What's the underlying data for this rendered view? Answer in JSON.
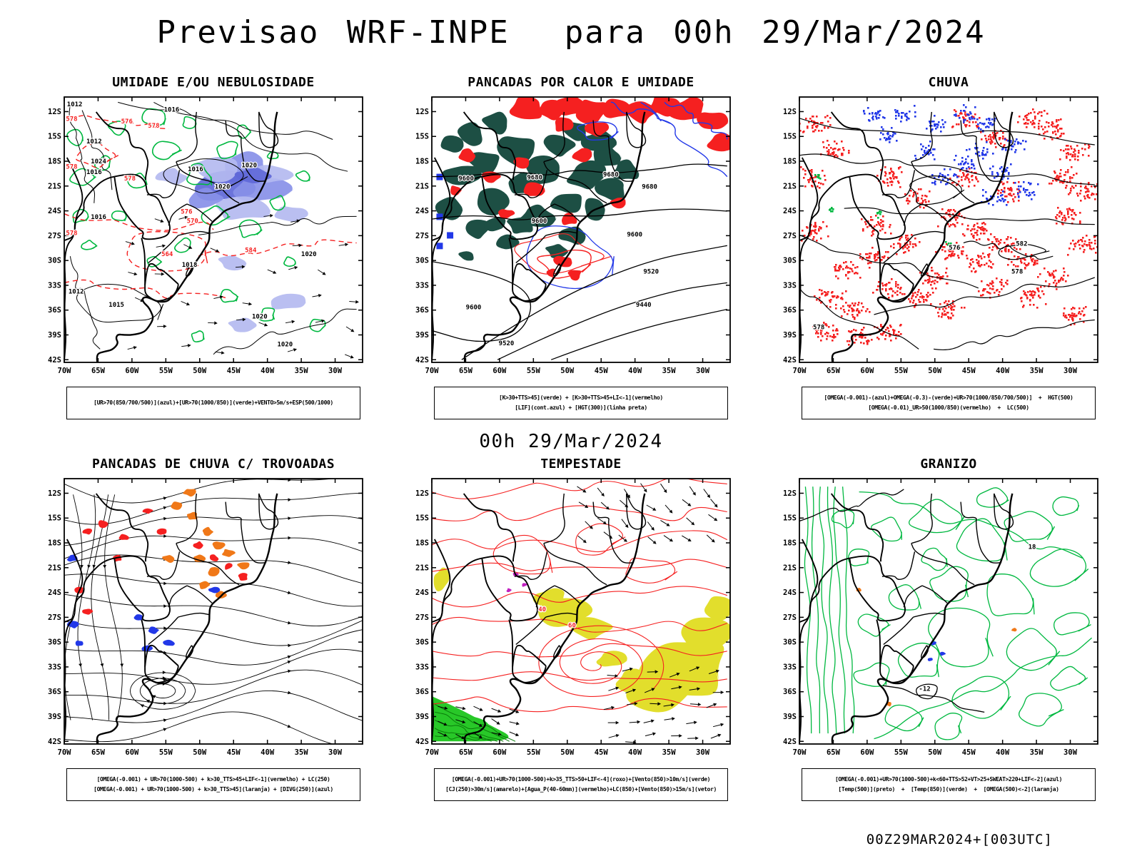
{
  "page": {
    "title": "Previsao WRF-INPE  para 00h 29/Mar/2024",
    "mid_label": "00h 29/Mar/2024",
    "footer": "00Z29MAR2024+[003UTC]"
  },
  "axes": {
    "lat": [
      "12S",
      "15S",
      "18S",
      "21S",
      "24S",
      "27S",
      "30S",
      "33S",
      "36S",
      "39S",
      "42S"
    ],
    "lon": [
      "70W",
      "65W",
      "60W",
      "55W",
      "50W",
      "45W",
      "40W",
      "35W",
      "30W"
    ]
  },
  "colors": {
    "green_contour": "#00b840",
    "red": "#f52020",
    "blue": "#2238e8",
    "teal": "#1d4f44",
    "orange": "#f07818",
    "yellow": "#e2de2c",
    "green_fill": "#28c828",
    "shade1": "#b4baf0",
    "shade2": "#8890e8",
    "shade3": "#5f68d8",
    "magenta": "#c020c0"
  },
  "panels": [
    {
      "id": "umidade",
      "title": "UMIDADE E/OU NEBULOSIDADE",
      "caption1": "[UR>70(850/700/500)](azul)+[UR>70(1000/850)](verde)+VENTO>5m/s+ESP(500/1000)",
      "caption2": "",
      "labels": [
        {
          "t": "1012",
          "fx": 0.035,
          "fy": 0.035,
          "c": "#000000"
        },
        {
          "t": "1016",
          "fx": 0.36,
          "fy": 0.055,
          "c": "#000000"
        },
        {
          "t": "1012",
          "fx": 0.1,
          "fy": 0.175,
          "c": "#000000"
        },
        {
          "t": "1024",
          "fx": 0.115,
          "fy": 0.25,
          "c": "#000000"
        },
        {
          "t": "1016",
          "fx": 0.1,
          "fy": 0.29,
          "c": "#000000"
        },
        {
          "t": "1016",
          "fx": 0.44,
          "fy": 0.28,
          "c": "#000000"
        },
        {
          "t": "1020",
          "fx": 0.62,
          "fy": 0.265,
          "c": "#000000"
        },
        {
          "t": "1020",
          "fx": 0.53,
          "fy": 0.345,
          "c": "#000000"
        },
        {
          "t": "1016",
          "fx": 0.115,
          "fy": 0.46,
          "c": "#000000"
        },
        {
          "t": "1020",
          "fx": 0.82,
          "fy": 0.6,
          "c": "#000000"
        },
        {
          "t": "1018",
          "fx": 0.42,
          "fy": 0.64,
          "c": "#000000"
        },
        {
          "t": "1015",
          "fx": 0.175,
          "fy": 0.79,
          "c": "#000000"
        },
        {
          "t": "1012",
          "fx": 0.04,
          "fy": 0.74,
          "c": "#000000"
        },
        {
          "t": "1020",
          "fx": 0.655,
          "fy": 0.835,
          "c": "#000000"
        },
        {
          "t": "1020",
          "fx": 0.74,
          "fy": 0.94,
          "c": "#000000"
        },
        {
          "t": "578",
          "fx": 0.025,
          "fy": 0.09,
          "c": "#f52020"
        },
        {
          "t": "576",
          "fx": 0.21,
          "fy": 0.1,
          "c": "#f52020"
        },
        {
          "t": "578",
          "fx": 0.3,
          "fy": 0.115,
          "c": "#f52020"
        },
        {
          "t": "578",
          "fx": 0.025,
          "fy": 0.27,
          "c": "#f52020"
        },
        {
          "t": "578",
          "fx": 0.22,
          "fy": 0.315,
          "c": "#f52020"
        },
        {
          "t": "576",
          "fx": 0.41,
          "fy": 0.44,
          "c": "#f52020"
        },
        {
          "t": "570",
          "fx": 0.43,
          "fy": 0.475,
          "c": "#f52020"
        },
        {
          "t": "564",
          "fx": 0.345,
          "fy": 0.6,
          "c": "#f52020"
        },
        {
          "t": "584",
          "fx": 0.625,
          "fy": 0.585,
          "c": "#f52020"
        },
        {
          "t": "578",
          "fx": 0.025,
          "fy": 0.52,
          "c": "#f52020"
        }
      ]
    },
    {
      "id": "pancadas-calor",
      "title": "PANCADAS POR CALOR E UMIDADE",
      "caption1": "[K>30+TTS>45](verde) + [K>30+TTS>45+LI<-1](vermelho)",
      "caption2": "[LIF](cont.azul) + [HGT(300)](linha preta)",
      "labels": [
        {
          "t": "9600",
          "fx": 0.115,
          "fy": 0.315,
          "c": "#000000"
        },
        {
          "t": "9680",
          "fx": 0.345,
          "fy": 0.31,
          "c": "#000000"
        },
        {
          "t": "9680",
          "fx": 0.6,
          "fy": 0.3,
          "c": "#000000"
        },
        {
          "t": "9680",
          "fx": 0.73,
          "fy": 0.345,
          "c": "#000000"
        },
        {
          "t": "9600",
          "fx": 0.36,
          "fy": 0.475,
          "c": "#000000"
        },
        {
          "t": "9600",
          "fx": 0.68,
          "fy": 0.525,
          "c": "#000000"
        },
        {
          "t": "9520",
          "fx": 0.735,
          "fy": 0.665,
          "c": "#000000"
        },
        {
          "t": "9440",
          "fx": 0.71,
          "fy": 0.79,
          "c": "#000000"
        },
        {
          "t": "9600",
          "fx": 0.14,
          "fy": 0.8,
          "c": "#000000"
        },
        {
          "t": "9520",
          "fx": 0.25,
          "fy": 0.935,
          "c": "#000000"
        }
      ]
    },
    {
      "id": "chuva",
      "title": "CHUVA",
      "caption1": "[OMEGA(-0.001)-(azul)+OMEGA(-0.3)-(verde)+UR>70(1000/850/700/500)]  +  HGT(500)",
      "caption2": "[OMEGA(-0.01)_UR>50(1000/850)(vermelho)  +  LC(500)",
      "labels": [
        {
          "t": "576",
          "fx": 0.52,
          "fy": 0.575,
          "c": "#000000"
        },
        {
          "t": "582",
          "fx": 0.745,
          "fy": 0.56,
          "c": "#000000"
        },
        {
          "t": "578",
          "fx": 0.73,
          "fy": 0.665,
          "c": "#000000"
        },
        {
          "t": "578",
          "fx": 0.065,
          "fy": 0.875,
          "c": "#000000"
        }
      ]
    },
    {
      "id": "trovoadas",
      "title": "PANCADAS DE CHUVA C/ TROVOADAS",
      "caption1": "[OMEGA(-0.001) + UR>70(1000-500) + k>30_TTS>45+LIF<-1](vermelho) + LC(250)",
      "caption2": "[OMEGA(-0.001) + UR>70(1000-500) + k>30_TTS>45](laranja) + [DIVG(250)](azul)",
      "labels": []
    },
    {
      "id": "tempestade",
      "title": "TEMPESTADE",
      "caption1": "[OMEGA(-0.001)+UR>70(1000-500)+k>35_TTS>50+LIF<-4](roxo)+[Vento(850)>10m/s](verde)",
      "caption2": "[CJ(250)>30m/s](amarelo)+[Agua_P(40-60mm)](vermelho)+LC(850)+[Vento(850)>15m/s](vetor)",
      "labels": [
        {
          "t": "40",
          "fx": 0.37,
          "fy": 0.5,
          "c": "#f52020"
        },
        {
          "t": "60",
          "fx": 0.47,
          "fy": 0.56,
          "c": "#f52020"
        }
      ]
    },
    {
      "id": "granizo",
      "title": "GRANIZO",
      "caption1": "[OMEGA(-0.001)+UR>70(1000-500)+k<60+TTS>52+VT>25+SWEAT>220+LIF<-2](azul)",
      "caption2": "[Temp(500)](preto)  +  [Temp(850)](verde)  +  [OMEGA(500)<-2](laranja)",
      "labels": [
        {
          "t": "18",
          "fx": 0.78,
          "fy": 0.265,
          "c": "#000000"
        },
        {
          "t": "-12",
          "fx": 0.42,
          "fy": 0.8,
          "c": "#000000"
        }
      ]
    }
  ]
}
